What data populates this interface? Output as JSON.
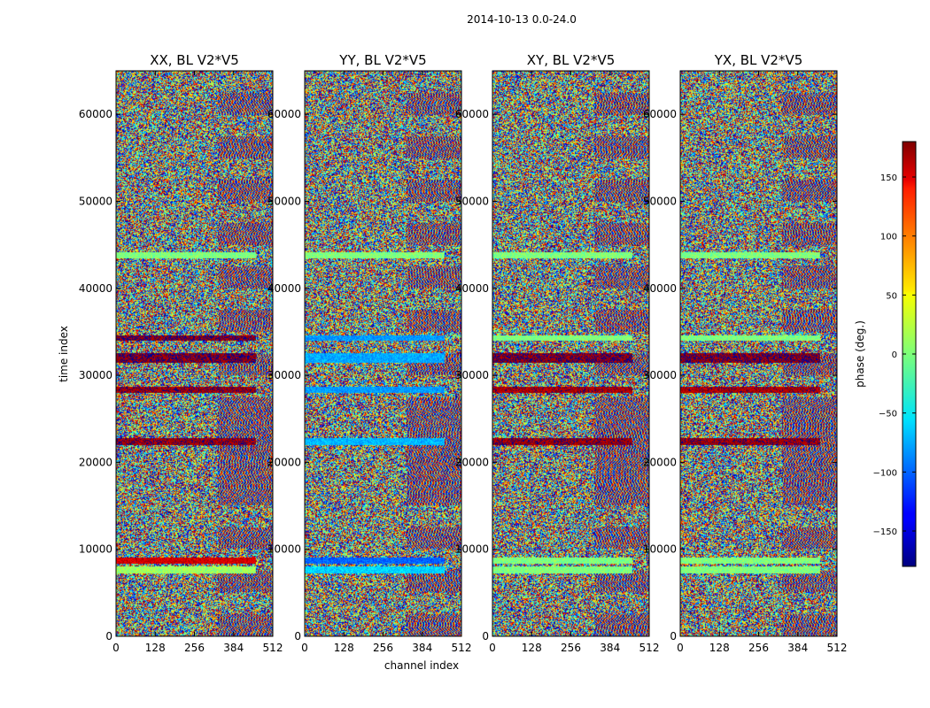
{
  "chart_data": {
    "type": "heatmap",
    "suptitle": "2014-10-13 0.0-24.0",
    "xlabel": "channel index",
    "ylabel": "time index",
    "xlim": [
      0,
      512
    ],
    "ylim": [
      0,
      65000
    ],
    "xticks": [
      0,
      128,
      256,
      384,
      512
    ],
    "yticks": [
      0,
      10000,
      20000,
      30000,
      40000,
      50000,
      60000
    ],
    "panels": [
      {
        "title": "XX, BL V2*V5",
        "pol": "XX"
      },
      {
        "title": "YY, BL V2*V5",
        "pol": "YY"
      },
      {
        "title": "XY, BL V2*V5",
        "pol": "XY"
      },
      {
        "title": "YX, BL V2*V5",
        "pol": "YX"
      }
    ],
    "colorbar": {
      "label": "phase (deg.)",
      "range": [
        -180,
        180
      ],
      "ticks": [
        -150,
        -100,
        -50,
        0,
        50,
        100,
        150
      ],
      "colormap": "jet"
    },
    "bands": [
      {
        "t0": 22000,
        "t1": 22800,
        "XX": 170,
        "YY": -70,
        "XY": 170,
        "YX": 170
      },
      {
        "t0": 28000,
        "t1": 28700,
        "XX": 170,
        "YY": -80,
        "XY": 165,
        "YX": 165
      },
      {
        "t0": 31400,
        "t1": 32500,
        "XX": 175,
        "YY": -75,
        "XY": 175,
        "YX": 175
      },
      {
        "t0": 34000,
        "t1": 34600,
        "XX": 175,
        "YY": -80,
        "XY": 0,
        "YX": 0
      },
      {
        "t0": 43500,
        "t1": 44200,
        "XX": 0,
        "YY": 0,
        "XY": 0,
        "YX": 0
      },
      {
        "t0": 7200,
        "t1": 8000,
        "XX": 10,
        "YY": -60,
        "XY": 0,
        "YX": 0
      },
      {
        "t0": 8300,
        "t1": 9000,
        "XX": 150,
        "YY": -100,
        "XY": 0,
        "YX": 0
      }
    ]
  }
}
